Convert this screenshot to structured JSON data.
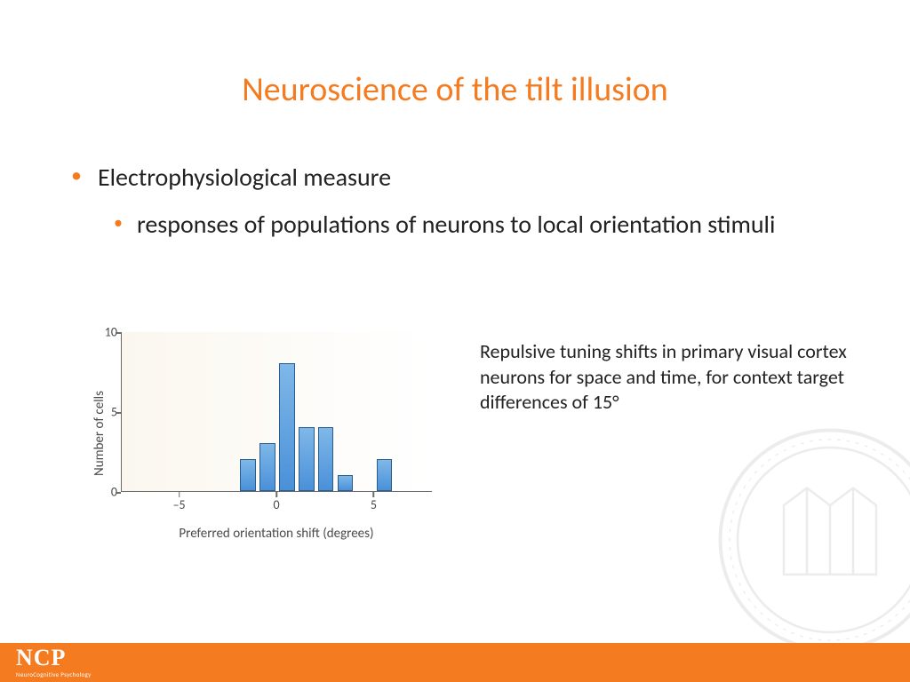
{
  "title": "Neuroscience of the tilt illusion",
  "bullets": {
    "level1": "Electrophysiological measure",
    "level2": "responses of populations of neurons to local orientation stimuli"
  },
  "caption": "Repulsive tuning shifts in primary visual cortex neurons for space and time, for context target differences of 15°",
  "chart": {
    "type": "bar",
    "ylabel": "Number of cells",
    "xlabel": "Preferred orientation shift (degrees)",
    "xlim": [
      -8,
      8
    ],
    "ylim": [
      0,
      10
    ],
    "xticks": [
      -5,
      0,
      5
    ],
    "yticks": [
      0,
      5,
      10
    ],
    "bars": [
      {
        "x": -1.5,
        "y": 2
      },
      {
        "x": -0.5,
        "y": 3
      },
      {
        "x": 0.5,
        "y": 8
      },
      {
        "x": 1.5,
        "y": 4
      },
      {
        "x": 2.5,
        "y": 4
      },
      {
        "x": 3.5,
        "y": 1
      },
      {
        "x": 5.5,
        "y": 2
      }
    ],
    "bar_width": 0.8,
    "bar_fill_top": "#7fb8e8",
    "bar_fill_bottom": "#4a90d9",
    "bar_border": "#2a5c8f",
    "plot_bg_left": "#fbf7ef",
    "plot_bg_right": "#ffffff",
    "axis_color": "#6b6b6b",
    "label_color": "#4a4a4a",
    "label_fontsize": 15,
    "tick_fontsize": 14
  },
  "footer": {
    "logo_main": "NCP",
    "logo_sub": "NeuroCognitive Psychology",
    "bg_color": "#f47b20"
  },
  "colors": {
    "title": "#f47b20",
    "bullet_dot": "#f47b20",
    "text": "#222222"
  }
}
